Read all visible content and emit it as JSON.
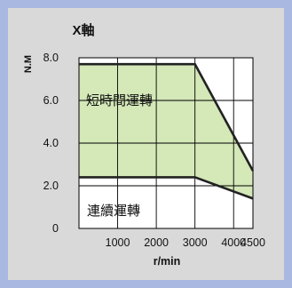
{
  "chart_data": {
    "type": "area",
    "title": "X軸",
    "xlabel": "r/min",
    "ylabel": "N.M",
    "x_ticks": [
      {
        "value": 1000,
        "label": "1000"
      },
      {
        "value": 2000,
        "label": "2000"
      },
      {
        "value": 3000,
        "label": "3000"
      },
      {
        "value": 4000,
        "label": "4000"
      },
      {
        "value": 4500,
        "label": "4500"
      }
    ],
    "y_ticks": [
      {
        "value": 0,
        "label": "0"
      },
      {
        "value": 2,
        "label": "2.0"
      },
      {
        "value": 4,
        "label": "4.0"
      },
      {
        "value": 6,
        "label": "6.0"
      },
      {
        "value": 8,
        "label": "8.0"
      }
    ],
    "xlim": [
      0,
      4500
    ],
    "ylim": [
      0,
      8
    ],
    "grid": true,
    "series": [
      {
        "name": "短時間運轉",
        "fill": "#d4e8b8",
        "x": [
          0,
          3000,
          4500
        ],
        "y": [
          7.7,
          7.7,
          2.7
        ]
      },
      {
        "name": "連續運轉",
        "fill": "#ffffff",
        "x": [
          0,
          3000,
          4500
        ],
        "y": [
          2.4,
          2.4,
          1.4
        ]
      }
    ],
    "colors": {
      "line": "#222222",
      "grid": "#000000",
      "plot_bg": "#ffffff",
      "card_bg": "#d9d9d9"
    }
  }
}
